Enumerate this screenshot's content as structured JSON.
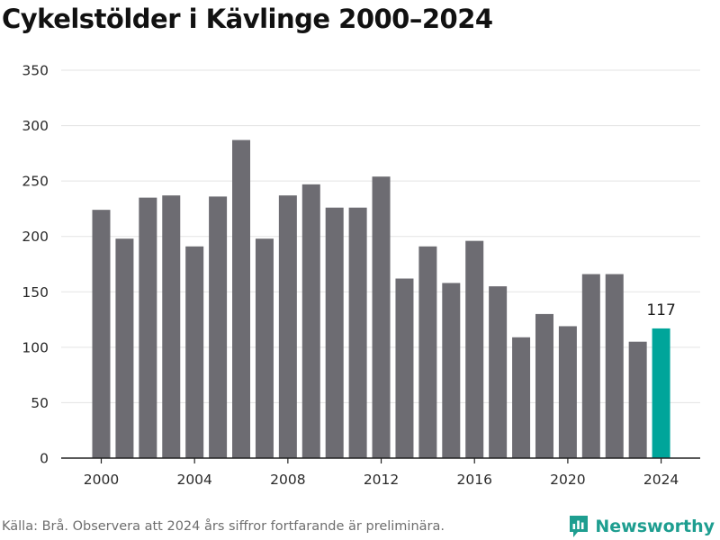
{
  "page": {
    "title": "Cykelstölder i Kävlinge 2000–2024",
    "source": "Källa: Brå. Observera att 2024 års siffror fortfarande är preliminära.",
    "brand": "Newsworthy"
  },
  "colors": {
    "bar": "#6d6c72",
    "highlight": "#00a59a",
    "grid": "#e3e3e3",
    "axis": "#222222",
    "brand": "#1e9e90"
  },
  "icons": {
    "brand_logo": "newsworthy-logo-icon"
  },
  "chart_data": {
    "type": "bar",
    "title": "Cykelstölder i Kävlinge 2000–2024",
    "xlabel": "",
    "ylabel": "",
    "categories": [
      2000,
      2001,
      2002,
      2003,
      2004,
      2005,
      2006,
      2007,
      2008,
      2009,
      2010,
      2011,
      2012,
      2013,
      2014,
      2015,
      2016,
      2017,
      2018,
      2019,
      2020,
      2021,
      2022,
      2023,
      2024
    ],
    "values": [
      224,
      198,
      235,
      237,
      191,
      236,
      287,
      198,
      237,
      247,
      226,
      226,
      254,
      162,
      191,
      158,
      196,
      155,
      109,
      130,
      119,
      166,
      166,
      105,
      117
    ],
    "highlight_index": 24,
    "highlight_label": "117",
    "ylim": [
      0,
      350
    ],
    "yticks": [
      0,
      50,
      100,
      150,
      200,
      250,
      300,
      350
    ],
    "xticks": [
      2000,
      2004,
      2008,
      2012,
      2016,
      2020,
      2024
    ],
    "grid": true,
    "legend": "none"
  }
}
